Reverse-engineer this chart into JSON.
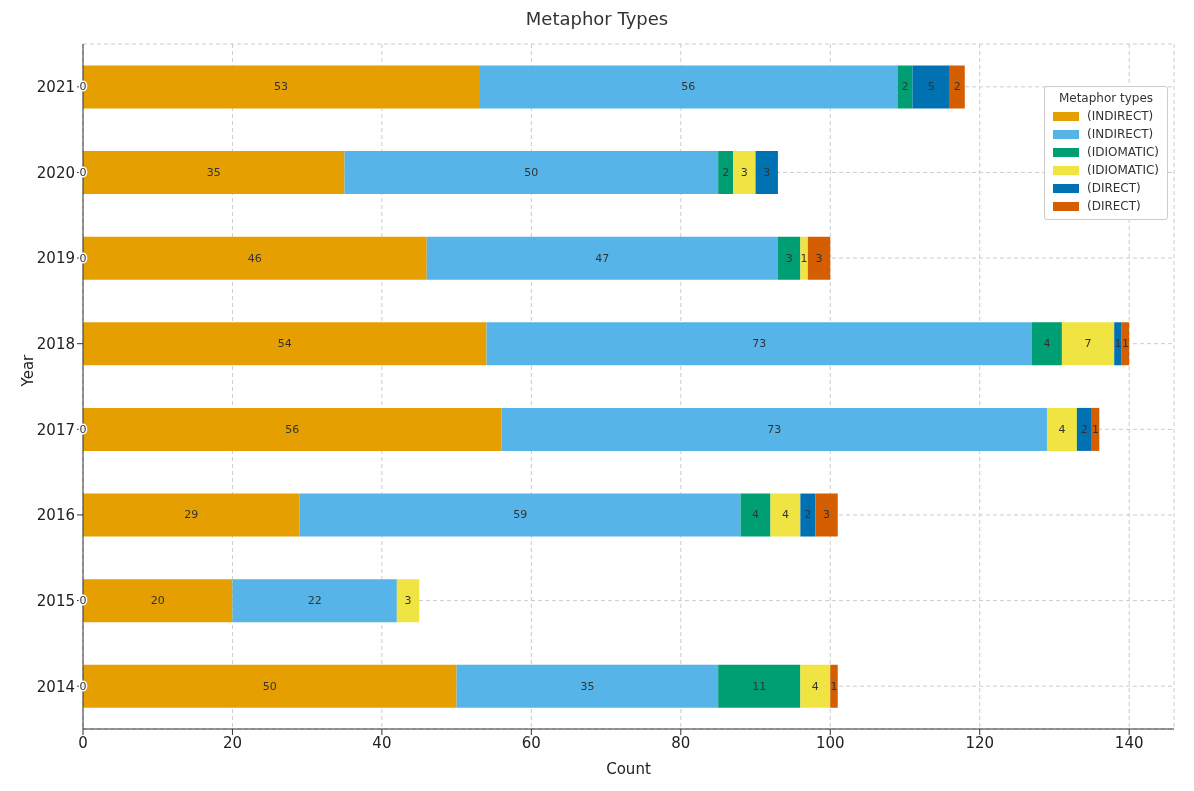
{
  "chart_data": {
    "type": "bar",
    "orientation": "horizontal",
    "stacked": true,
    "title": "Metaphor Types",
    "xlabel": "Count",
    "ylabel": "Year",
    "legend_title": "Metaphor types",
    "legend": "top right",
    "grid": true,
    "data_labels": true,
    "categories": [
      "2021",
      "2020",
      "2019",
      "2018",
      "2017",
      "2016",
      "2015",
      "2014"
    ],
    "xlim": [
      0,
      146
    ],
    "xticks": [
      0,
      20,
      40,
      60,
      80,
      100,
      120,
      140
    ],
    "series": [
      {
        "name": "(INDIRECT)",
        "color": "#e69f00",
        "values": [
          53,
          35,
          46,
          54,
          56,
          29,
          20,
          50
        ]
      },
      {
        "name": "(INDIRECT)",
        "color": "#56b4e9",
        "values": [
          56,
          50,
          47,
          73,
          73,
          59,
          22,
          35
        ]
      },
      {
        "name": "(IDIOMATIC)",
        "color": "#009e73",
        "values": [
          2,
          2,
          3,
          4,
          null,
          4,
          null,
          11
        ],
        "value_labels": [
          "2",
          "2",
          "3",
          "4",
          "0",
          "4",
          "0",
          "11"
        ]
      },
      {
        "name": "(IDIOMATIC)",
        "color": "#f0e442",
        "values": [
          null,
          3,
          1,
          7,
          4,
          4,
          3,
          4
        ],
        "value_labels": [
          "0",
          "3",
          "1",
          "7",
          "4",
          "4",
          "3",
          "4"
        ]
      },
      {
        "name": "(DIRECT)",
        "color": "#0072b2",
        "values": [
          5,
          3,
          null,
          1,
          2,
          2,
          null,
          null
        ],
        "value_labels": [
          "5",
          "3",
          "0",
          "1",
          "2",
          "2",
          null,
          "0"
        ]
      },
      {
        "name": "(DIRECT)",
        "color": "#d55e00",
        "values": [
          2,
          null,
          3,
          1,
          1,
          3,
          null,
          1
        ],
        "value_labels": [
          "2",
          "0",
          "3",
          "1",
          "1",
          "3",
          null,
          "1"
        ]
      }
    ]
  }
}
